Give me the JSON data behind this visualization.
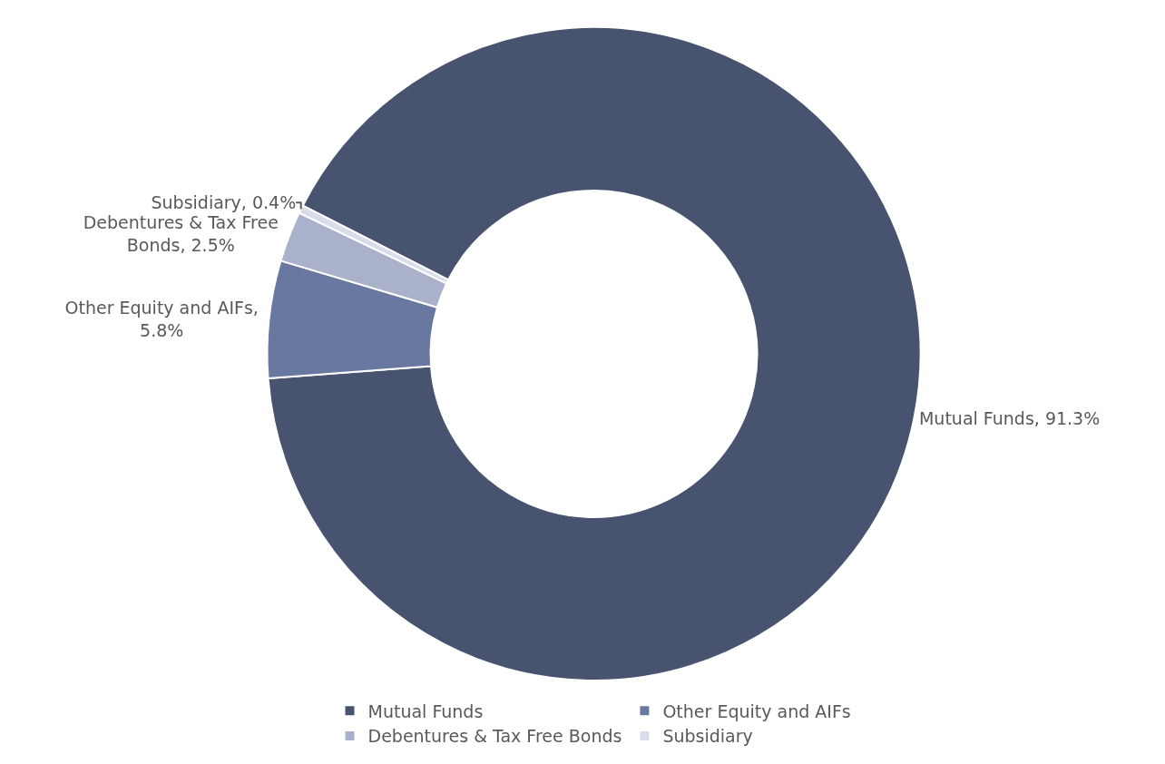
{
  "chart_data": {
    "type": "donut",
    "categories": [
      "Mutual Funds",
      "Other Equity and AIFs",
      "Debentures & Tax Free Bonds",
      "Subsidiary"
    ],
    "values": [
      91.3,
      5.8,
      2.5,
      0.4
    ],
    "colors": [
      "#485370",
      "#6878a0",
      "#a9b1cb",
      "#d9dde9"
    ],
    "value_labels": [
      "Mutual Funds, 91.3%",
      "Other Equity and AIFs, 5.8%",
      "Debentures & Tax Free Bonds, 2.5%",
      "Subsidiary, 0.4%"
    ],
    "legend": "bottom"
  }
}
